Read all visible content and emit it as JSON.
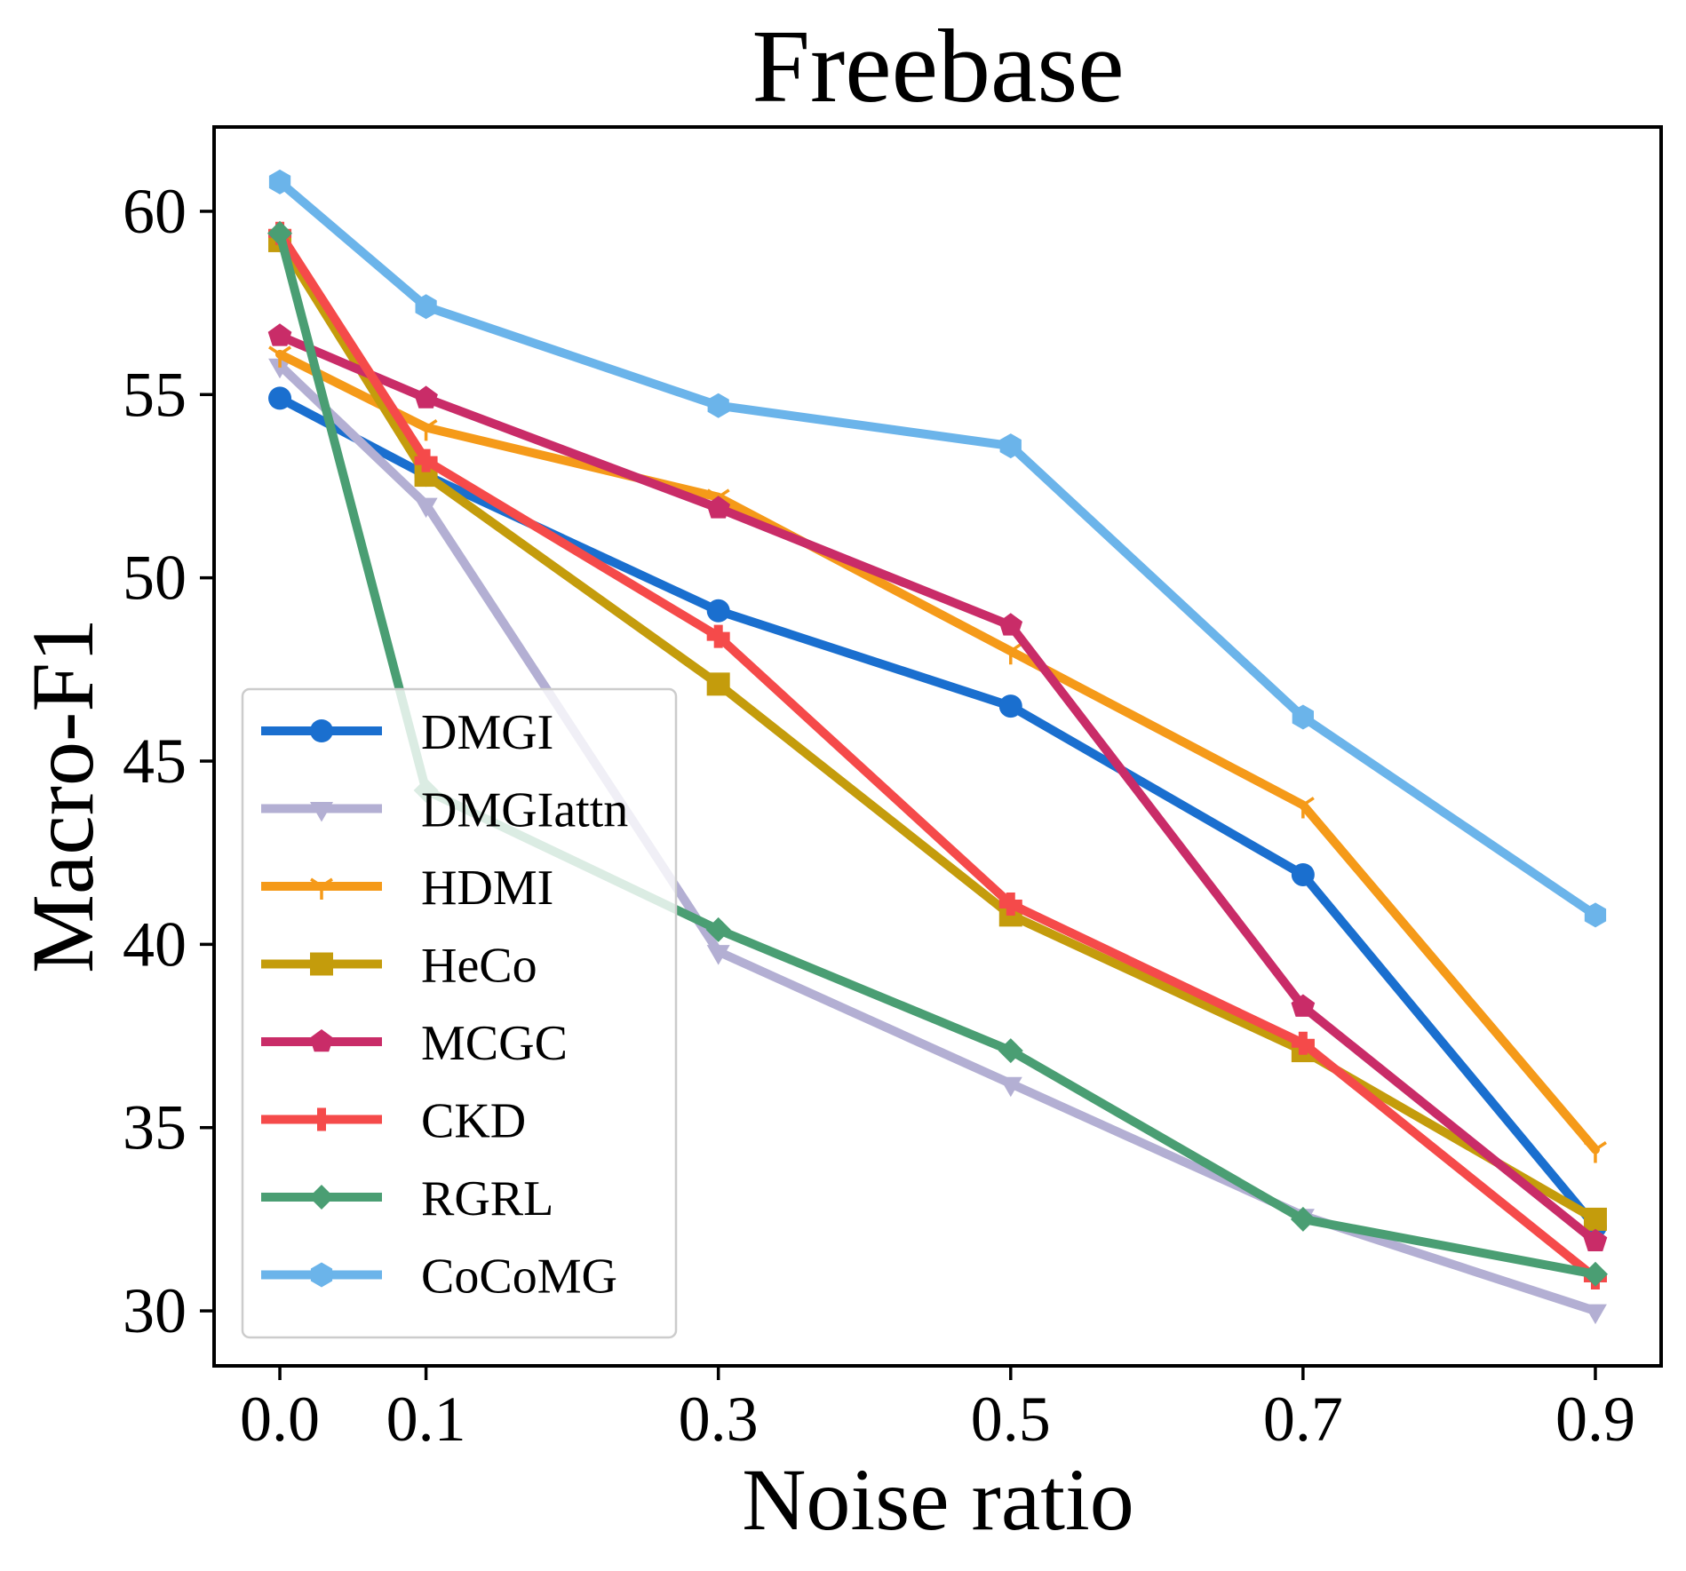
{
  "chart_data": {
    "type": "line",
    "title": "Freebase",
    "xlabel": "Noise ratio",
    "ylabel": "Macro-F1",
    "x": [
      0.0,
      0.1,
      0.3,
      0.5,
      0.7,
      0.9
    ],
    "x_tick_labels": [
      "0.0",
      "0.1",
      "0.3",
      "0.5",
      "0.7",
      "0.9"
    ],
    "y_ticks": [
      30,
      35,
      40,
      45,
      50,
      55,
      60
    ],
    "y_tick_labels": [
      "30",
      "35",
      "40",
      "45",
      "50",
      "55",
      "60"
    ],
    "xlim": [
      -0.045,
      0.945
    ],
    "ylim": [
      28.5,
      62.3
    ],
    "legend_position": "lower-left",
    "series": [
      {
        "name": "DMGI",
        "color": "#1a6fcf",
        "marker": "circle",
        "values": [
          54.9,
          52.8,
          49.1,
          46.5,
          41.9,
          32.3
        ]
      },
      {
        "name": "DMGIattn",
        "color": "#b3afd3",
        "marker": "triangle-down",
        "values": [
          55.8,
          52.0,
          39.8,
          36.2,
          32.6,
          30.0
        ]
      },
      {
        "name": "HDMI",
        "color": "#f59a19",
        "marker": "tri-down",
        "values": [
          56.1,
          54.1,
          52.2,
          48.0,
          43.8,
          34.4
        ]
      },
      {
        "name": "HeCo",
        "color": "#c49c0c",
        "marker": "square",
        "values": [
          59.2,
          52.8,
          47.1,
          40.8,
          37.1,
          32.5
        ]
      },
      {
        "name": "MCGC",
        "color": "#c92c68",
        "marker": "pentagon",
        "values": [
          56.6,
          54.9,
          51.9,
          48.7,
          38.3,
          31.9
        ]
      },
      {
        "name": "CKD",
        "color": "#f54a4a",
        "marker": "plus",
        "values": [
          59.4,
          53.2,
          48.4,
          41.1,
          37.3,
          30.9
        ]
      },
      {
        "name": "RGRL",
        "color": "#4a9e73",
        "marker": "diamond",
        "values": [
          59.4,
          44.2,
          40.4,
          37.1,
          32.5,
          31.0
        ]
      },
      {
        "name": "CoCoMG",
        "color": "#6bb4ea",
        "marker": "hexagon",
        "values": [
          60.8,
          57.4,
          54.7,
          53.6,
          46.2,
          40.8
        ]
      }
    ]
  }
}
